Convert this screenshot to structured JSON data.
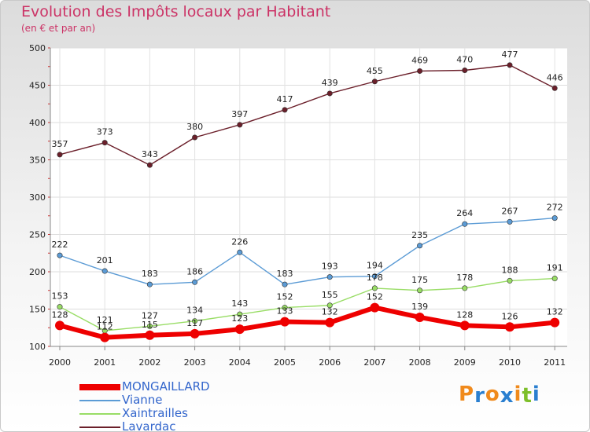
{
  "header": {
    "title": "Evolution des Impôts locaux par Habitant",
    "subtitle": "(en € et par an)"
  },
  "logo": {
    "text": "Proxiti",
    "letter_colors": [
      "#f08a1c",
      "#2a7fd0",
      "#f08a1c",
      "#2a7fd0",
      "#f08a1c",
      "#7dbf2a",
      "#2a7fd0"
    ]
  },
  "chart_data": {
    "type": "line",
    "x": [
      2000,
      2001,
      2002,
      2003,
      2004,
      2005,
      2006,
      2007,
      2008,
      2009,
      2010,
      2011
    ],
    "ylim": [
      100,
      500
    ],
    "yticks": [
      100,
      150,
      200,
      250,
      300,
      350,
      400,
      450,
      500
    ],
    "grid": true,
    "legend_position": "bottom-left",
    "series": [
      {
        "name": "Lavardac",
        "color": "#6b1f2a",
        "values": [
          357,
          373,
          343,
          380,
          397,
          417,
          439,
          455,
          469,
          470,
          477,
          446
        ],
        "labels": [
          "357",
          "373",
          "343",
          "380",
          "397",
          "417",
          "439",
          "455",
          "469",
          "470",
          "477",
          "446"
        ]
      },
      {
        "name": "Vianne",
        "color": "#5b9bd5",
        "values": [
          222,
          201,
          183,
          186,
          226,
          183,
          193,
          194,
          235,
          264,
          267,
          272
        ],
        "labels": [
          "222",
          "201",
          "183",
          "186",
          "226",
          "183",
          "193",
          "194",
          "235",
          "264",
          "267",
          "272"
        ]
      },
      {
        "name": "Xaintrailles",
        "color": "#99dd66",
        "values": [
          153,
          121,
          127,
          134,
          143,
          152,
          155,
          178,
          175,
          178,
          188,
          191
        ],
        "labels": [
          "153",
          "121",
          "127",
          "134",
          "143",
          "152",
          "155",
          "178",
          "175",
          "178",
          "188",
          "191"
        ]
      },
      {
        "name": "MONGAILLARD",
        "color": "#ee0000",
        "values": [
          128,
          112,
          115,
          117,
          123,
          133,
          132,
          152,
          139,
          128,
          126,
          132
        ],
        "labels": [
          "128",
          "112",
          "115",
          "117",
          "123",
          "133",
          "132",
          "152",
          "139",
          "128",
          "126",
          "132"
        ]
      }
    ]
  }
}
